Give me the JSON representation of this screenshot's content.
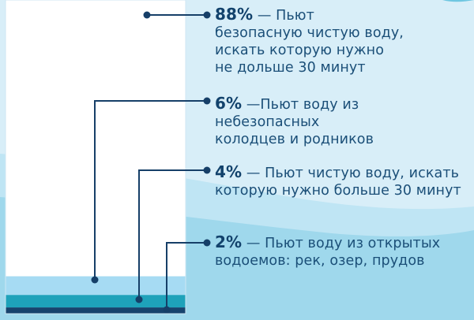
{
  "colors": {
    "text": "#1b4f78",
    "percent": "#12426c",
    "leader": "#163f68",
    "background_sky": "#d9eef8",
    "wave_light": "#a8daee",
    "wave_mid": "#6fc7e1",
    "bar_outline": "#1e5f8f"
  },
  "chart_data": {
    "type": "bar",
    "orientation": "vertical-stacked",
    "categories": [
      "Пьют безопасную чистую воду, искать которую нужно не дольше 30 минут",
      "Пьют воду из небезопасных колодцев и родников",
      "Пьют чистую воду, искать которую нужно больше 30 минут",
      "Пьют воду из открытых водоемов: рек, озер, прудов"
    ],
    "values": [
      88,
      6,
      4,
      2
    ],
    "unit": "%",
    "colors": [
      "#ffffff",
      "#a6dbf3",
      "#1ea2ba",
      "#17436d"
    ]
  },
  "labels": [
    {
      "percent": "88%",
      "lines": [
        "— Пьют",
        "безопасную чистую воду,",
        "искать которую нужно",
        "не дольше 30 минут"
      ]
    },
    {
      "percent": "6%",
      "lines": [
        "—Пьют воду из небезопасных",
        "колодцев и родников"
      ]
    },
    {
      "percent": "4%",
      "lines": [
        "— Пьют чистую воду, искать",
        "которую нужно больше 30 минут"
      ]
    },
    {
      "percent": "2%",
      "lines": [
        "— Пьют воду из открытых",
        "водоемов: рек, озер, прудов"
      ]
    }
  ]
}
